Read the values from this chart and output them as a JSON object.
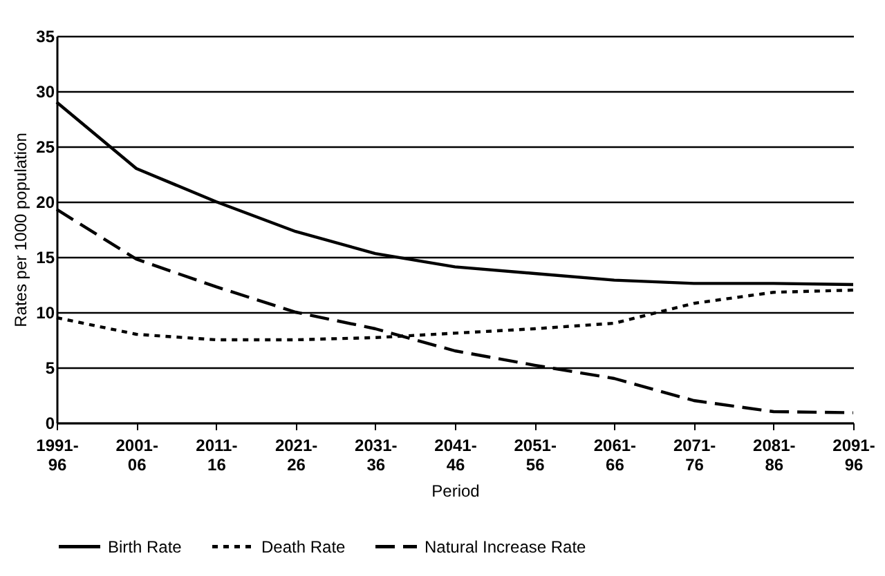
{
  "chart_data": {
    "type": "line",
    "xlabel": "Period",
    "ylabel": "Rates per 1000 population",
    "categories": [
      "1991-96",
      "2001-06",
      "2011-16",
      "2021-26",
      "2031-36",
      "2041-46",
      "2051-56",
      "2061-66",
      "2071-76",
      "2081-86",
      "2091-96"
    ],
    "series": [
      {
        "name": "Birth Rate",
        "color": "#000000",
        "line_style": "solid",
        "values": [
          29,
          23,
          20,
          17.3,
          15.3,
          14.1,
          13.5,
          12.9,
          12.6,
          12.6,
          12.5
        ]
      },
      {
        "name": "Death Rate",
        "color": "#000000",
        "line_style": "dotted",
        "values": [
          9.5,
          8,
          7.5,
          7.5,
          7.7,
          8.1,
          8.5,
          9,
          10.8,
          11.8,
          12
        ]
      },
      {
        "name": "Natural Increase Rate",
        "color": "#000000",
        "line_style": "dashed",
        "values": [
          19.3,
          14.8,
          12.3,
          10,
          8.5,
          6.5,
          5.2,
          4,
          2,
          1,
          0.9
        ]
      }
    ],
    "ylim": [
      0,
      35
    ],
    "yticks": [
      0,
      5,
      10,
      15,
      20,
      25,
      30,
      35
    ],
    "grid": "y",
    "legend": "bottom",
    "marker": "none"
  }
}
